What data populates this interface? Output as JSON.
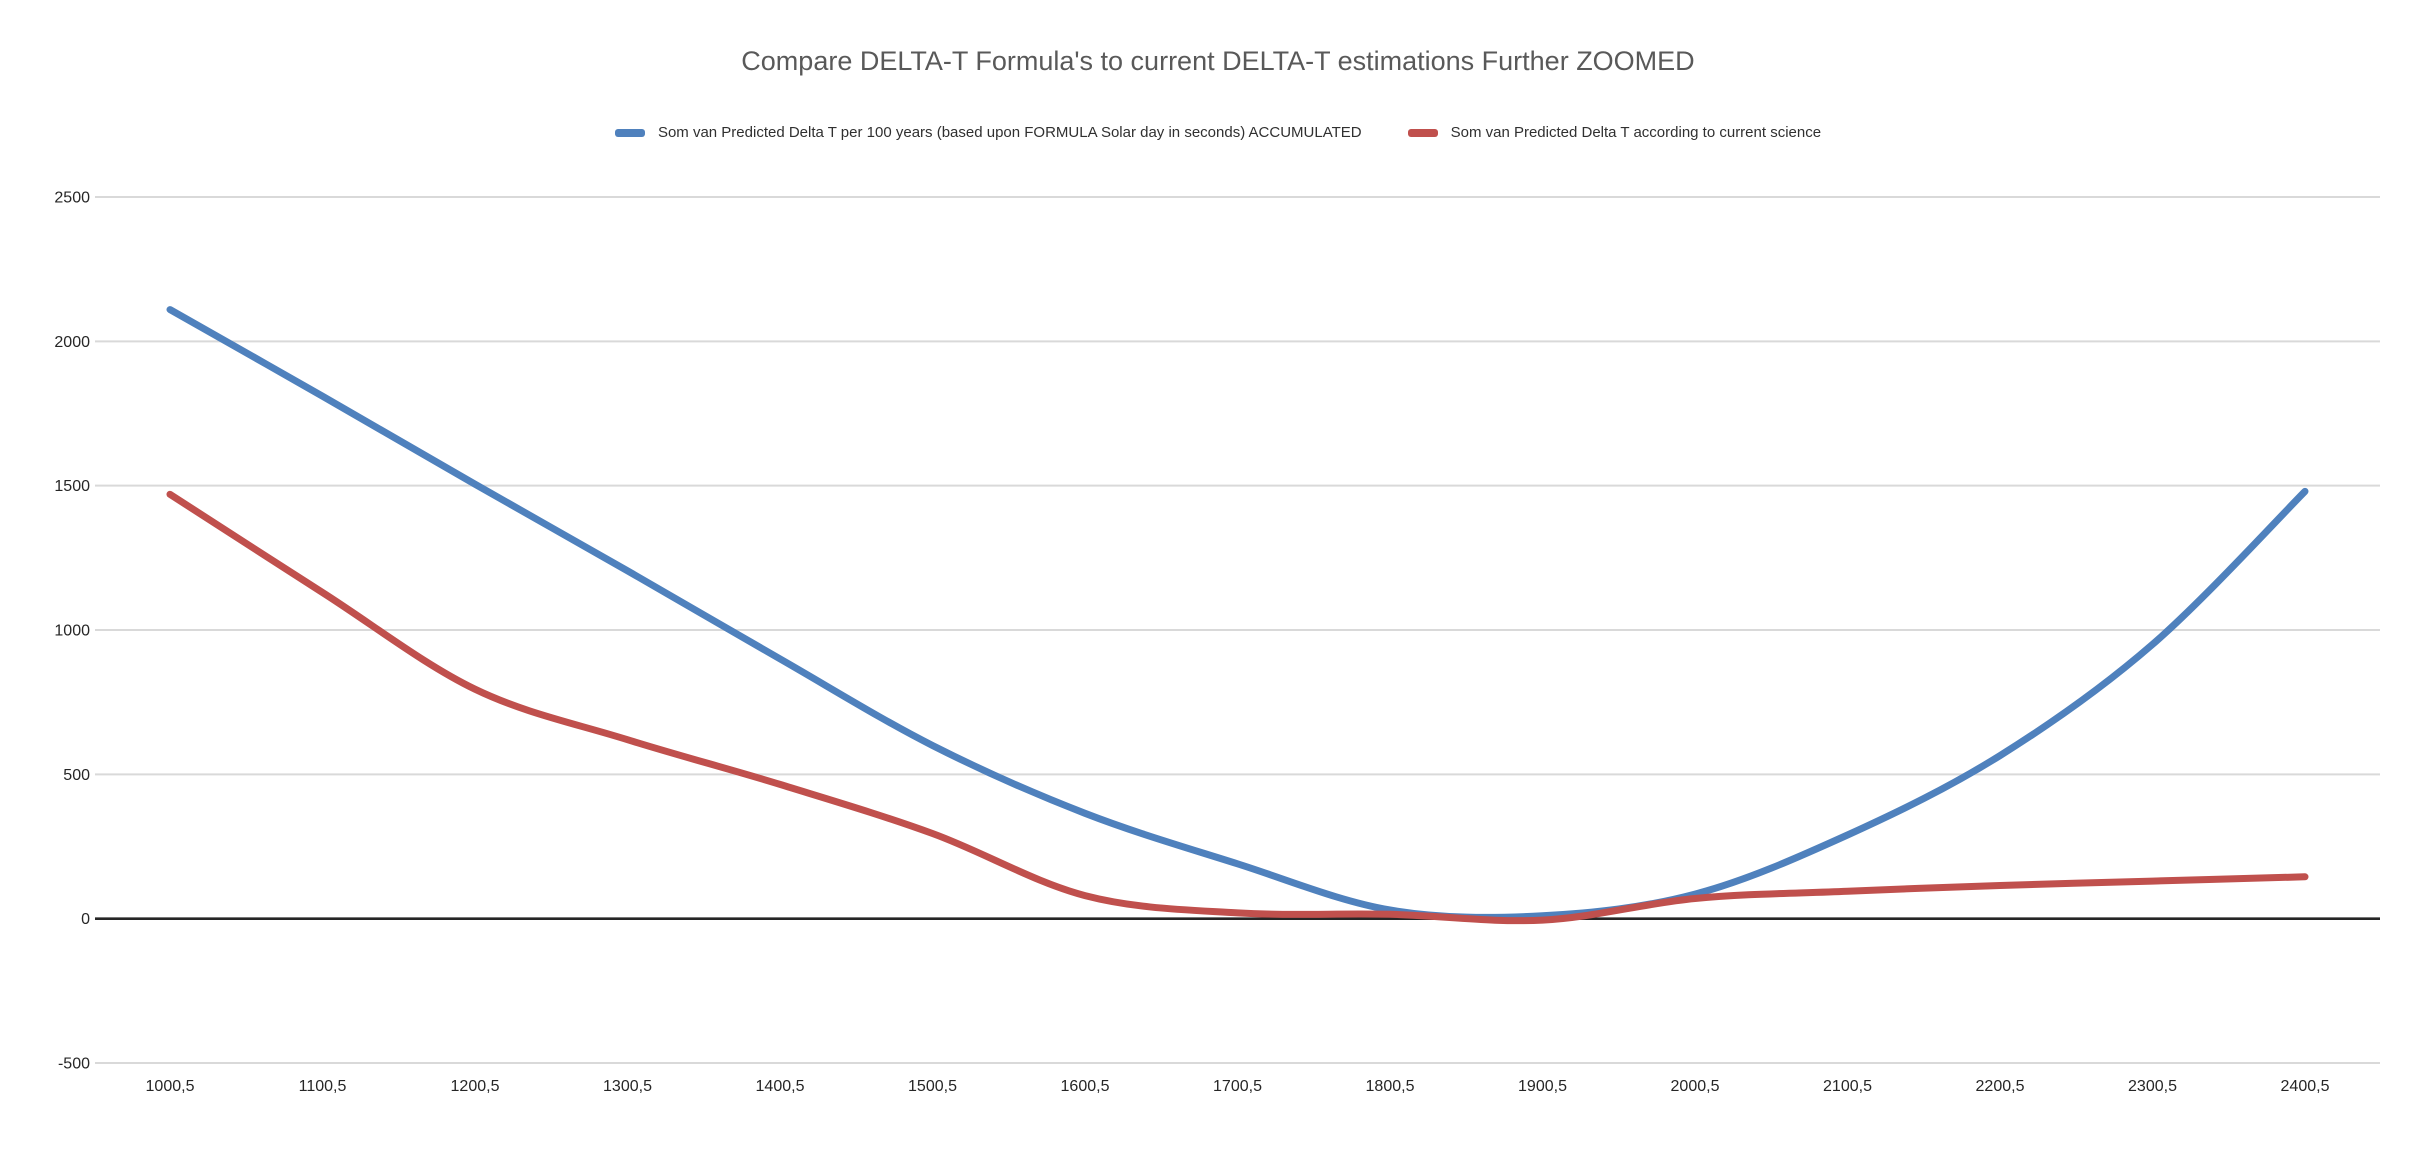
{
  "title": "Compare DELTA-T Formula's to current DELTA-T estimations Further ZOOMED",
  "colors": {
    "series_blue": "#4F81BD",
    "series_red": "#C0504D",
    "gridline": "#D9D9D9",
    "zero_axis": "#262626",
    "title_text": "#595959",
    "tick_text": "#262626"
  },
  "chart_data": {
    "type": "line",
    "title": "Compare DELTA-T Formula's to current DELTA-T estimations Further ZOOMED",
    "categories": [
      "1000,5",
      "1100,5",
      "1200,5",
      "1300,5",
      "1400,5",
      "1500,5",
      "1600,5",
      "1700,5",
      "1800,5",
      "1900,5",
      "2000,5",
      "2100,5",
      "2200,5",
      "2300,5",
      "2400,5"
    ],
    "series": [
      {
        "name": "Som van Predicted Delta T per 100 years (based upon FORMULA Solar day in seconds) ACCUMULATED",
        "color": "#4F81BD",
        "values": [
          2110,
          1810,
          1505,
          1205,
          900,
          600,
          365,
          190,
          30,
          10,
          85,
          290,
          565,
          950,
          1480
        ]
      },
      {
        "name": "Som van Predicted Delta T according to current science",
        "color": "#C0504D",
        "values": [
          1470,
          1130,
          795,
          620,
          465,
          295,
          80,
          20,
          15,
          -5,
          70,
          95,
          115,
          130,
          145
        ]
      }
    ],
    "xlabel": "",
    "ylabel": "",
    "ylim": [
      -500,
      2500
    ],
    "y_ticks": [
      2500,
      2000,
      1500,
      1000,
      500,
      0,
      -500
    ],
    "grid": true,
    "legend_position": "top"
  }
}
